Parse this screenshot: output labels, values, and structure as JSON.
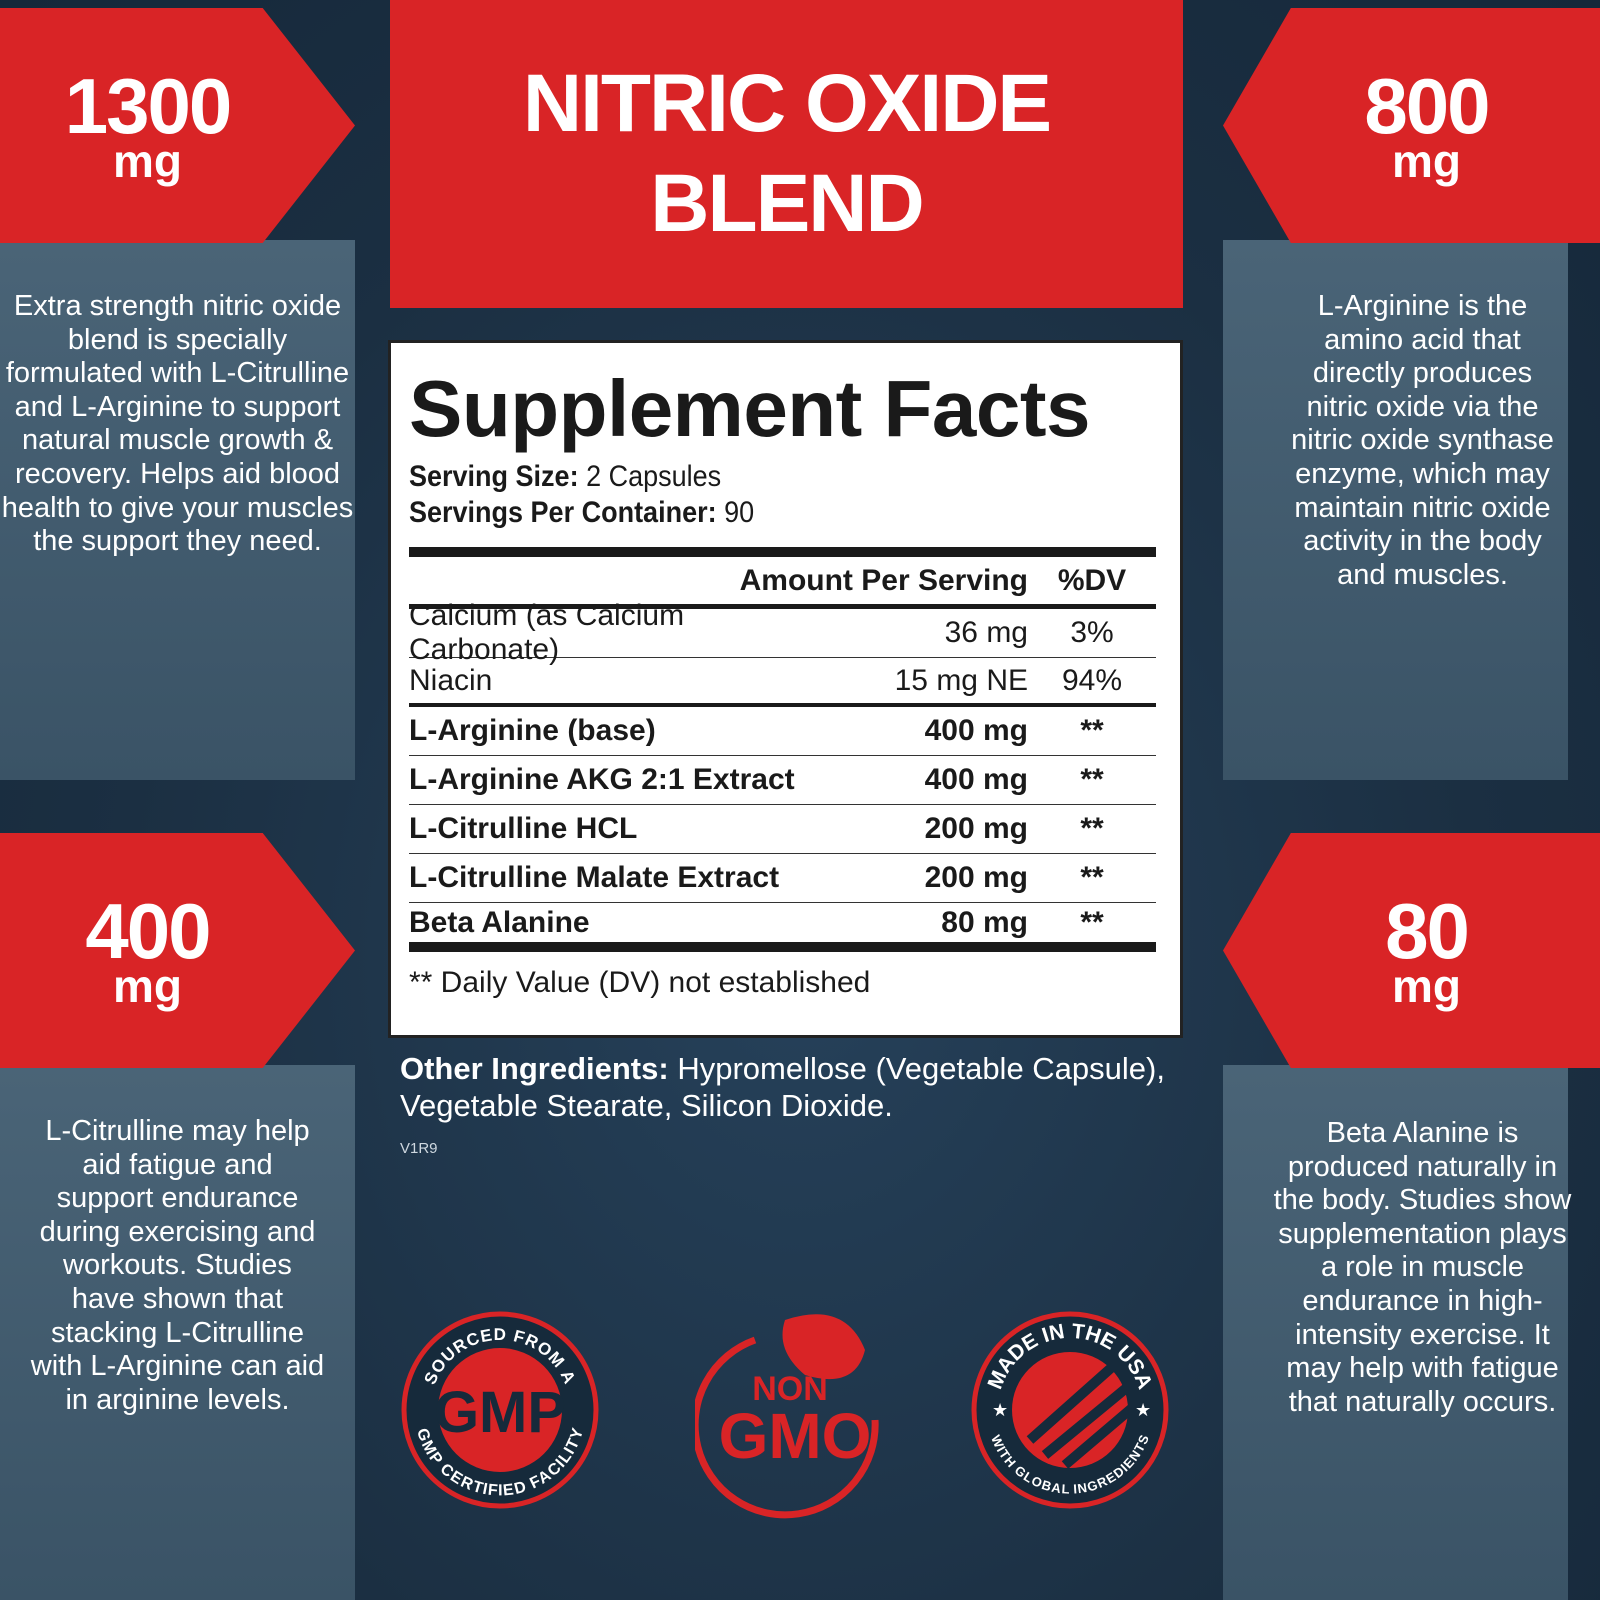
{
  "title": {
    "line1": "NITRIC OXIDE",
    "line2": "BLEND"
  },
  "callouts": [
    {
      "amount": "1300",
      "unit": "mg",
      "text": "Extra strength nitric oxide blend is specially formulated with L-Citrulline and L-Arginine to support natural muscle growth & recovery. Helps aid blood health to give your muscles the support they need."
    },
    {
      "amount": "800",
      "unit": "mg",
      "text": "L-Arginine is the amino acid that directly produces nitric oxide via the nitric oxide synthase enzyme, which may maintain nitric oxide activity in the body and muscles."
    },
    {
      "amount": "400",
      "unit": "mg",
      "text": "L-Citrulline may help aid fatigue and support endurance during exercising and workouts. Studies have shown that stacking L-Citrulline with L-Arginine can aid in arginine levels."
    },
    {
      "amount": "80",
      "unit": "mg",
      "text": "Beta Alanine is produced naturally in the body. Studies show supplementation plays a role in muscle endurance in high-intensity exercise. It may help with fatigue that naturally occurs."
    }
  ],
  "facts": {
    "heading": "Supplement Facts",
    "serving_size_label": "Serving Size:",
    "serving_size": "2 Capsules",
    "servings_label": "Servings Per Container:",
    "servings": "90",
    "col_amount": "Amount Per Serving",
    "col_dv": "%DV",
    "rows": [
      {
        "name": "Calcium (as Calcium Carbonate)",
        "amount": "36 mg",
        "dv": "3%",
        "bold": false
      },
      {
        "name": "Niacin",
        "amount": "15 mg NE",
        "dv": "94%",
        "bold": false
      },
      {
        "name": "L-Arginine (base)",
        "amount": "400 mg",
        "dv": "**",
        "bold": true
      },
      {
        "name": "L-Arginine AKG 2:1 Extract",
        "amount": "400 mg",
        "dv": "**",
        "bold": true
      },
      {
        "name": "L-Citrulline HCL",
        "amount": "200 mg",
        "dv": "**",
        "bold": true
      },
      {
        "name": "L-Citrulline Malate Extract",
        "amount": "200 mg",
        "dv": "**",
        "bold": true
      },
      {
        "name": "Beta Alanine",
        "amount": "80 mg",
        "dv": "**",
        "bold": true
      }
    ],
    "footnote": "** Daily Value (DV) not established"
  },
  "other_ingredients": {
    "label": "Other Ingredients:",
    "text": "Hypromellose (Vegetable Capsule), Vegetable Stearate, Silicon Dioxide."
  },
  "version": "V1R9",
  "badges": [
    {
      "icon": "gmp-badge",
      "top": "SOURCED FROM A",
      "center": "GMP",
      "bottom": "GMP CERTIFIED FACILITY"
    },
    {
      "icon": "non-gmo-badge",
      "line1": "NON",
      "line2": "GMO"
    },
    {
      "icon": "usa-badge",
      "top": "MADE IN THE USA",
      "bottom": "WITH GLOBAL INGREDIENTS"
    }
  ],
  "colors": {
    "red": "#d92426",
    "navy": "#1d3346",
    "slate": "#445d70"
  }
}
